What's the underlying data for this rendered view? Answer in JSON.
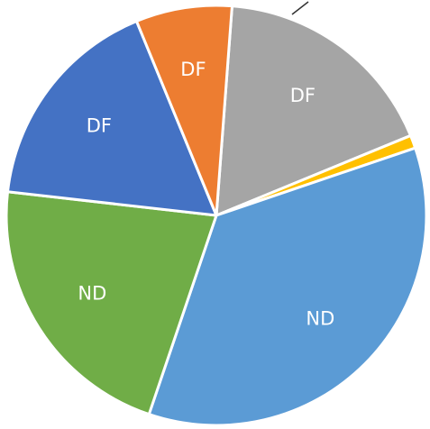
{
  "chart_data": {
    "type": "pie",
    "categories": [
      "DF",
      null,
      "ND",
      "ND",
      "DF",
      "DF"
    ],
    "values": [
      17.6,
      1.0,
      35.4,
      21.6,
      17.0,
      7.4
    ],
    "colors": [
      "#a5a5a5",
      "#ffc000",
      "#5b9bd5",
      "#70ad47",
      "#4472c4",
      "#ed7d31"
    ]
  }
}
